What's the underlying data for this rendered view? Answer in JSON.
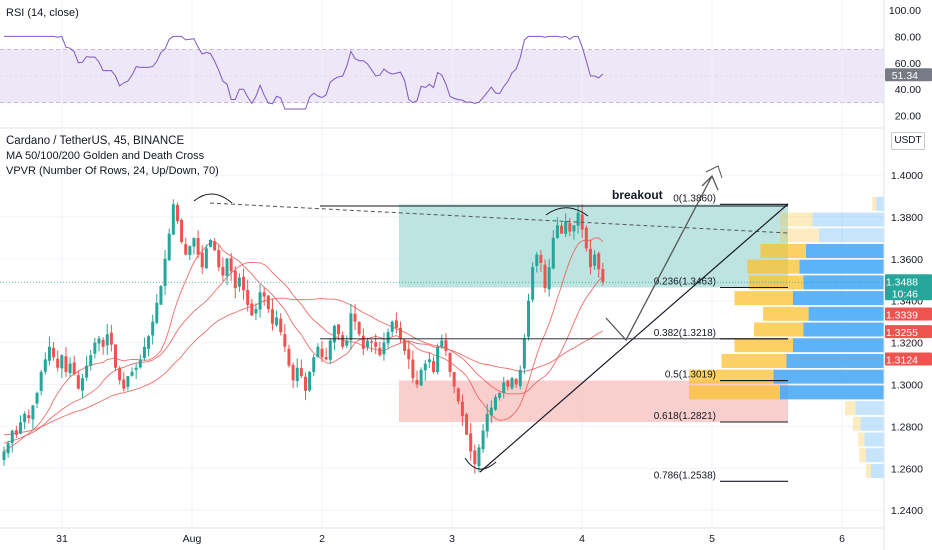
{
  "colors": {
    "up": "#26a69a",
    "down": "#ef5350",
    "rsi_line": "#7e57c2",
    "rsi_band": "#ede7f6",
    "ma_line": "#ef5350",
    "teal_zone": "#b2dfdb",
    "red_zone": "#f8c7c4",
    "vol_up": "#42a5f5",
    "vol_down": "#fbc02d",
    "last_price_bg": "#26a69a",
    "level_tag_bg": "#ef5350"
  },
  "rsi": {
    "title": "RSI (14, close)",
    "axis": [
      "100.00",
      "80.00",
      "60.00",
      "40.00",
      "20.00"
    ],
    "value_label": "51.34"
  },
  "header": {
    "line1": "Cardano / TetherUS, 45, BINANCE",
    "line2": "MA 50/100/200 Golden and Death Cross",
    "line3": "VPVR (Number Of Rows, 24, Up/Down, 70)"
  },
  "price_axis": {
    "currency": "USDT",
    "ticks": [
      "1.4000",
      "1.3800",
      "1.3600",
      "1.3400",
      "1.3200",
      "1.3000",
      "1.2800",
      "1.2600",
      "1.2400"
    ]
  },
  "tags": {
    "last_price": "1.3488",
    "countdown": "10:46",
    "level_1": "1.3339",
    "level_2": "1.3255",
    "level_3": "1.3124"
  },
  "time_axis": {
    "labels": [
      "31",
      "Aug",
      "2",
      "3",
      "4",
      "5",
      "6"
    ]
  },
  "annotations": {
    "breakout": "breakout"
  },
  "chart_data": {
    "type": "candlestick",
    "symbol": "ADAUSDT",
    "interval": "45",
    "ylim": [
      1.235,
      1.415
    ],
    "fibonacci": [
      {
        "label": "0(1.3860)",
        "value": 1.386
      },
      {
        "label": "0.236(1.3463)",
        "value": 1.3463
      },
      {
        "label": "0.382(1.3218)",
        "value": 1.3218
      },
      {
        "label": "0.5(1.3019)",
        "value": 1.3019
      },
      {
        "label": "0.618(1.2821)",
        "value": 1.2821
      },
      {
        "label": "0.786(1.2538)",
        "value": 1.2538
      }
    ],
    "closes": [
      1.268,
      1.272,
      1.278,
      1.276,
      1.282,
      1.286,
      1.284,
      1.29,
      1.296,
      1.306,
      1.312,
      1.318,
      1.313,
      1.308,
      1.314,
      1.306,
      1.31,
      1.305,
      1.298,
      1.303,
      1.309,
      1.314,
      1.32,
      1.322,
      1.318,
      1.324,
      1.319,
      1.308,
      1.302,
      1.298,
      1.304,
      1.306,
      1.308,
      1.312,
      1.318,
      1.323,
      1.33,
      1.339,
      1.347,
      1.36,
      1.372,
      1.386,
      1.378,
      1.368,
      1.362,
      1.366,
      1.37,
      1.362,
      1.356,
      1.365,
      1.369,
      1.364,
      1.356,
      1.352,
      1.36,
      1.354,
      1.346,
      1.351,
      1.345,
      1.338,
      1.333,
      1.336,
      1.344,
      1.342,
      1.336,
      1.329,
      1.332,
      1.325,
      1.318,
      1.309,
      1.302,
      1.308,
      1.304,
      1.297,
      1.306,
      1.313,
      1.318,
      1.313,
      1.312,
      1.321,
      1.328,
      1.324,
      1.318,
      1.321,
      1.334,
      1.33,
      1.324,
      1.317,
      1.321,
      1.32,
      1.318,
      1.314,
      1.32,
      1.325,
      1.33,
      1.327,
      1.322,
      1.316,
      1.312,
      1.303,
      1.3,
      1.307,
      1.31,
      1.312,
      1.306,
      1.318,
      1.321,
      1.316,
      1.306,
      1.299,
      1.292,
      1.285,
      1.276,
      1.268,
      1.262,
      1.27,
      1.278,
      1.286,
      1.289,
      1.294,
      1.296,
      1.301,
      1.299,
      1.303,
      1.3,
      1.307,
      1.322,
      1.34,
      1.356,
      1.362,
      1.358,
      1.346,
      1.356,
      1.37,
      1.376,
      1.372,
      1.378,
      1.373,
      1.376,
      1.382,
      1.374,
      1.365,
      1.356,
      1.362,
      1.355,
      1.349
    ],
    "volume_profile": [
      {
        "price": 1.386,
        "up": 0.06,
        "down": 0.03
      },
      {
        "price": 1.3785,
        "up": 0.55,
        "down": 0.25
      },
      {
        "price": 1.371,
        "up": 0.5,
        "down": 0.3
      },
      {
        "price": 1.3635,
        "up": 0.6,
        "down": 0.35
      },
      {
        "price": 1.356,
        "up": 0.65,
        "down": 0.4
      },
      {
        "price": 1.3485,
        "up": 0.62,
        "down": 0.42
      },
      {
        "price": 1.341,
        "up": 0.7,
        "down": 0.45
      },
      {
        "price": 1.3335,
        "up": 0.58,
        "down": 0.35
      },
      {
        "price": 1.326,
        "up": 0.62,
        "down": 0.38
      },
      {
        "price": 1.3185,
        "up": 0.7,
        "down": 0.45
      },
      {
        "price": 1.311,
        "up": 0.75,
        "down": 0.5
      },
      {
        "price": 1.3035,
        "up": 0.85,
        "down": 0.65
      },
      {
        "price": 1.296,
        "up": 0.8,
        "down": 0.7
      },
      {
        "price": 1.2885,
        "up": 0.22,
        "down": 0.08
      },
      {
        "price": 1.281,
        "up": 0.18,
        "down": 0.06
      },
      {
        "price": 1.2735,
        "up": 0.15,
        "down": 0.05
      },
      {
        "price": 1.266,
        "up": 0.14,
        "down": 0.05
      },
      {
        "price": 1.2585,
        "up": 0.1,
        "down": 0.04
      }
    ]
  }
}
